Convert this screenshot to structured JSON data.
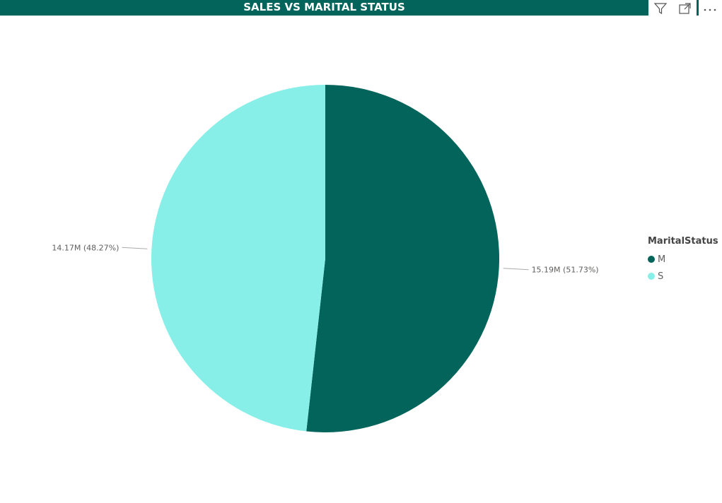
{
  "header": {
    "title": "SALES VS MARITAL STATUS"
  },
  "toolbar": {
    "icons": [
      "filter-icon",
      "focus-mode-icon",
      "more-options-icon"
    ]
  },
  "colors": {
    "M": "#02645a",
    "S": "#87efe8",
    "bar": "#02645a"
  },
  "chart_data": {
    "type": "pie",
    "title": "SALES VS MARITAL STATUS",
    "legend_title": "MaritalStatus",
    "legend_position": "right",
    "categories": [
      "M",
      "S"
    ],
    "values": [
      15.19,
      14.17
    ],
    "units": "M",
    "labels": [
      "15.19M (51.73%)",
      "14.17M (48.27%)"
    ],
    "percentages": [
      51.73,
      48.27
    ]
  }
}
